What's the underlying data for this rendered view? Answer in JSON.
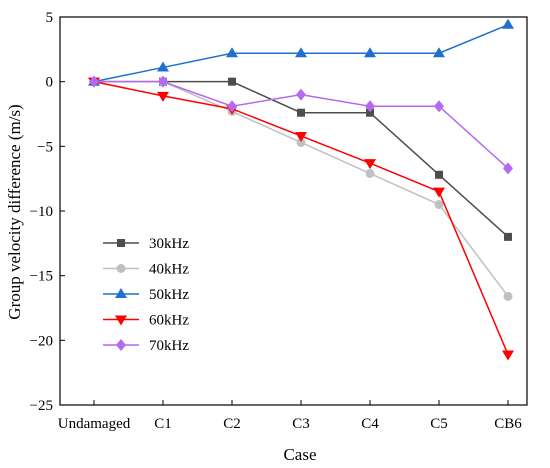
{
  "chart_data": {
    "type": "line",
    "categories": [
      "Undamaged",
      "C1",
      "C2",
      "C3",
      "C4",
      "C5",
      "CB6"
    ],
    "xlabel": "Case",
    "ylabel": "Group velocity difference (m/s)",
    "ylim": [
      -25,
      5
    ],
    "yticks": [
      5,
      0,
      -5,
      -10,
      -15,
      -20,
      -25
    ],
    "grid": false,
    "legend_position": "lower-left",
    "series": [
      {
        "name": "30kHz",
        "color": "#4d4d4d",
        "marker": "square",
        "values": [
          0,
          0,
          0,
          -2.4,
          -2.4,
          -7.2,
          -12.0
        ]
      },
      {
        "name": "40kHz",
        "color": "#c0c0c0",
        "marker": "circle",
        "values": [
          0,
          0,
          -2.3,
          -4.7,
          -7.1,
          -9.5,
          -16.6
        ]
      },
      {
        "name": "50kHz",
        "color": "#1f6fd1",
        "marker": "triangle-up",
        "values": [
          0,
          1.1,
          2.2,
          2.2,
          2.2,
          2.2,
          4.4
        ]
      },
      {
        "name": "60kHz",
        "color": "#ff0000",
        "marker": "triangle-down",
        "values": [
          0,
          -1.1,
          -2.1,
          -4.2,
          -6.3,
          -8.5,
          -21.1
        ]
      },
      {
        "name": "70kHz",
        "color": "#b469f0",
        "marker": "diamond",
        "values": [
          0,
          0,
          -1.9,
          -1.0,
          -1.9,
          -1.9,
          -6.7
        ]
      }
    ]
  }
}
